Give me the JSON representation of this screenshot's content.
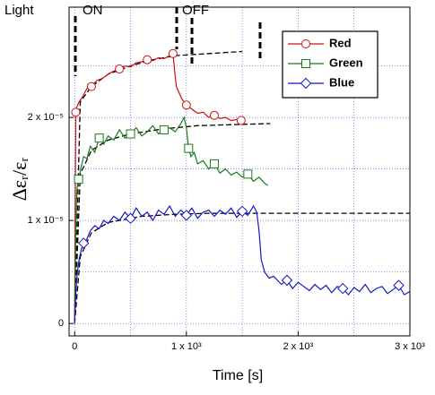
{
  "chart_data": {
    "type": "line",
    "x_label": "Time [s]",
    "y_label": "Δεᵣ/εᵣ",
    "annotations": [
      "Light",
      "ON",
      "OFF"
    ],
    "xlim": [
      -50,
      3000
    ],
    "ylim": [
      -1.2e-06,
      3.07e-05
    ],
    "xticks": [
      0,
      {
        "value": 1000,
        "label": "1 x 10³"
      },
      {
        "value": 2000,
        "label": "2 x 10³"
      },
      {
        "value": 3000,
        "label": "3 x 10³"
      }
    ],
    "yticks": [
      0,
      {
        "value": 1e-05,
        "label": "1 x 10⁻⁵"
      },
      {
        "value": 2e-05,
        "label": "2 x 10⁻⁵"
      }
    ],
    "minor_xticks": [
      500,
      1500,
      2500
    ],
    "minor_yticks": [
      5e-06,
      1.5e-05,
      2.5e-05
    ],
    "grid": true,
    "legend": "upper right",
    "series": [
      {
        "name": "Red",
        "color": "#d01010",
        "marker": "circle",
        "x": [
          0,
          5,
          10,
          20,
          40,
          70,
          110,
          150,
          200,
          250,
          300,
          350,
          400,
          450,
          500,
          550,
          600,
          650,
          700,
          750,
          800,
          850,
          880,
          895,
          910,
          930,
          960,
          1000,
          1050,
          1100,
          1150,
          1200,
          1250,
          1300,
          1350,
          1400,
          1450,
          1490
        ],
        "values": [
          0,
          1.2e-05,
          2.05e-05,
          2.1e-05,
          2.15e-05,
          2.2e-05,
          2.28e-05,
          2.3e-05,
          2.36e-05,
          2.38e-05,
          2.42e-05,
          2.45e-05,
          2.47e-05,
          2.5e-05,
          2.49e-05,
          2.53e-05,
          2.54e-05,
          2.56e-05,
          2.55e-05,
          2.58e-05,
          2.57e-05,
          2.6e-05,
          2.62e-05,
          2.45e-05,
          2.3e-05,
          2.25e-05,
          2.18e-05,
          2.12e-05,
          2.08e-05,
          2.04e-05,
          2.05e-05,
          2e-05,
          2.02e-05,
          1.99e-05,
          2e-05,
          1.97e-05,
          1.98e-05,
          1.97e-05
        ]
      },
      {
        "name": "Green",
        "color": "#1a7a1a",
        "marker": "square",
        "x": [
          0,
          10,
          20,
          35,
          55,
          80,
          110,
          140,
          180,
          220,
          260,
          300,
          350,
          400,
          450,
          500,
          550,
          600,
          650,
          700,
          750,
          800,
          850,
          900,
          950,
          980,
          1000,
          1020,
          1040,
          1070,
          1100,
          1150,
          1200,
          1250,
          1300,
          1350,
          1400,
          1450,
          1500,
          1550,
          1600,
          1650,
          1700,
          1730
        ],
        "values": [
          0,
          9e-06,
          1.3e-05,
          1.4e-05,
          1.5e-05,
          1.62e-05,
          1.6e-05,
          1.72e-05,
          1.66e-05,
          1.8e-05,
          1.74e-05,
          1.82e-05,
          1.78e-05,
          1.88e-05,
          1.8e-05,
          1.84e-05,
          1.9e-05,
          1.82e-05,
          1.86e-05,
          1.92e-05,
          1.84e-05,
          1.88e-05,
          1.9e-05,
          1.86e-05,
          1.94e-05,
          2e-05,
          1.9e-05,
          1.7e-05,
          1.62e-05,
          1.66e-05,
          1.55e-05,
          1.58e-05,
          1.5e-05,
          1.55e-05,
          1.46e-05,
          1.5e-05,
          1.44e-05,
          1.47e-05,
          1.42e-05,
          1.45e-05,
          1.38e-05,
          1.42e-05,
          1.36e-05,
          1.34e-05
        ]
      },
      {
        "name": "Blue",
        "color": "#1515c8",
        "marker": "diamond",
        "x": [
          0,
          10,
          25,
          40,
          60,
          80,
          110,
          140,
          180,
          220,
          260,
          300,
          350,
          400,
          450,
          500,
          550,
          600,
          650,
          700,
          750,
          800,
          850,
          900,
          950,
          1000,
          1050,
          1100,
          1150,
          1200,
          1250,
          1300,
          1350,
          1400,
          1450,
          1500,
          1550,
          1600,
          1630,
          1650,
          1670,
          1700,
          1740,
          1780,
          1850,
          1900,
          1950,
          2000,
          2050,
          2100,
          2150,
          2200,
          2250,
          2300,
          2350,
          2400,
          2450,
          2500,
          2550,
          2600,
          2650,
          2700,
          2750,
          2800,
          2850,
          2900,
          2950,
          3000
        ],
        "values": [
          0,
          3e-06,
          5e-06,
          6.2e-06,
          7.2e-06,
          7.8e-06,
          8.2e-06,
          9e-06,
          9.5e-06,
          9.2e-06,
          1e-05,
          9.7e-06,
          1.04e-05,
          1e-05,
          1.08e-05,
          1.02e-05,
          1.12e-05,
          1.04e-05,
          1.08e-05,
          1e-05,
          1.1e-05,
          1.06e-05,
          1.14e-05,
          1.04e-05,
          1.1e-05,
          1.05e-05,
          1.12e-05,
          1.02e-05,
          1.08e-05,
          1.1e-05,
          1.04e-05,
          1.1e-05,
          1.06e-05,
          1.12e-05,
          1.03e-05,
          1.09e-05,
          1.05e-05,
          1.14e-05,
          1.08e-05,
          9e-06,
          6.2e-06,
          5e-06,
          4.4e-06,
          4.6e-06,
          3.8e-06,
          4.2e-06,
          3.4e-06,
          4e-06,
          3.6e-06,
          3.2e-06,
          3.8e-06,
          3.3e-06,
          3.7e-06,
          3e-06,
          3.6e-06,
          3.4e-06,
          2.8e-06,
          3.5e-06,
          3.1e-06,
          3.8e-06,
          3e-06,
          3.4e-06,
          3.6e-06,
          2.9e-06,
          3.3e-06,
          3.7e-06,
          2.8e-06,
          3.1e-06
        ]
      }
    ],
    "fits": [
      {
        "color": "#000000",
        "x": [
          0,
          50,
          150,
          300,
          500,
          700,
          900,
          1200,
          1500
        ],
        "values": [
          0,
          2.15e-05,
          2.3e-05,
          2.42e-05,
          2.5e-05,
          2.56e-05,
          2.6e-05,
          2.62e-05,
          2.64e-05
        ]
      },
      {
        "color": "#000000",
        "x": [
          0,
          50,
          150,
          300,
          500,
          800,
          1100,
          1400,
          1750
        ],
        "values": [
          0,
          1.45e-05,
          1.68e-05,
          1.78e-05,
          1.84e-05,
          1.89e-05,
          1.92e-05,
          1.93e-05,
          1.94e-05
        ]
      },
      {
        "color": "#000000",
        "x": [
          0,
          50,
          150,
          300,
          600,
          900,
          1200,
          1600,
          2000,
          3000
        ],
        "values": [
          0,
          6.5e-06,
          8.8e-06,
          9.8e-06,
          1.04e-05,
          1.06e-05,
          1.07e-05,
          1.07e-05,
          1.07e-05,
          1.07e-05
        ]
      }
    ]
  }
}
